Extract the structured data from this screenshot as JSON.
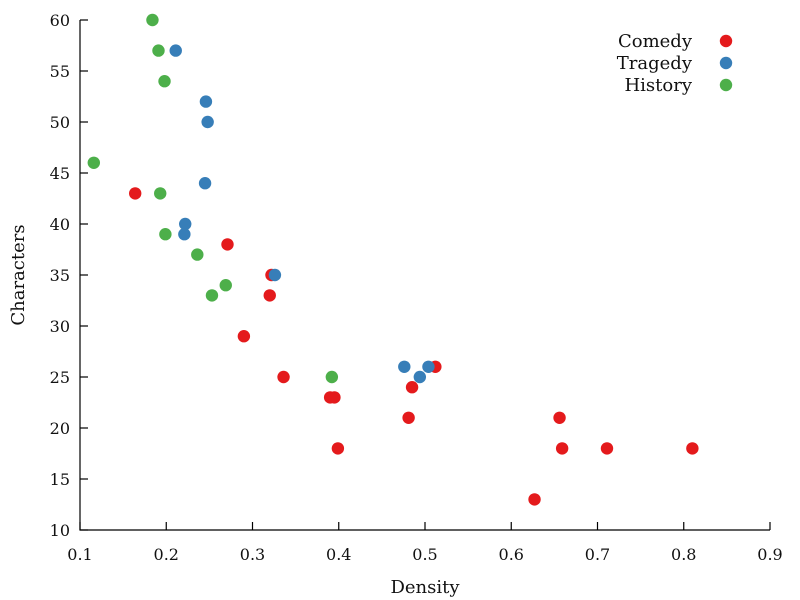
{
  "chart_data": {
    "type": "scatter",
    "title": "",
    "xlabel": "Density",
    "ylabel": "Characters",
    "xlim": [
      0.1,
      0.9
    ],
    "ylim": [
      10,
      60
    ],
    "xticks": [
      0.1,
      0.2,
      0.3,
      0.4,
      0.5,
      0.6,
      0.7,
      0.8,
      0.9
    ],
    "yticks": [
      10,
      15,
      20,
      25,
      30,
      35,
      40,
      45,
      50,
      55,
      60
    ],
    "xtick_labels": [
      "0.1",
      "0.2",
      "0.3",
      "0.4",
      "0.5",
      "0.6",
      "0.7",
      "0.8",
      "0.9"
    ],
    "ytick_labels": [
      "10",
      "15",
      "20",
      "25",
      "30",
      "35",
      "40",
      "45",
      "50",
      "55",
      "60"
    ],
    "grid": false,
    "legend_position": "top-right",
    "series": [
      {
        "name": "Comedy",
        "color": "#e41a1c",
        "points": [
          {
            "x": 0.164,
            "y": 43
          },
          {
            "x": 0.271,
            "y": 38
          },
          {
            "x": 0.322,
            "y": 35
          },
          {
            "x": 0.32,
            "y": 33
          },
          {
            "x": 0.29,
            "y": 29
          },
          {
            "x": 0.336,
            "y": 25
          },
          {
            "x": 0.39,
            "y": 23
          },
          {
            "x": 0.395,
            "y": 23
          },
          {
            "x": 0.399,
            "y": 18
          },
          {
            "x": 0.485,
            "y": 24
          },
          {
            "x": 0.481,
            "y": 21
          },
          {
            "x": 0.512,
            "y": 26
          },
          {
            "x": 0.656,
            "y": 21
          },
          {
            "x": 0.659,
            "y": 18
          },
          {
            "x": 0.711,
            "y": 18
          },
          {
            "x": 0.81,
            "y": 18
          },
          {
            "x": 0.627,
            "y": 13
          }
        ]
      },
      {
        "name": "Tragedy",
        "color": "#377eb8",
        "points": [
          {
            "x": 0.211,
            "y": 57
          },
          {
            "x": 0.246,
            "y": 52
          },
          {
            "x": 0.248,
            "y": 50
          },
          {
            "x": 0.245,
            "y": 44
          },
          {
            "x": 0.222,
            "y": 40
          },
          {
            "x": 0.221,
            "y": 39
          },
          {
            "x": 0.326,
            "y": 35
          },
          {
            "x": 0.476,
            "y": 26
          },
          {
            "x": 0.504,
            "y": 26
          },
          {
            "x": 0.494,
            "y": 25
          }
        ]
      },
      {
        "name": "History",
        "color": "#4daf4a",
        "points": [
          {
            "x": 0.184,
            "y": 60
          },
          {
            "x": 0.191,
            "y": 57
          },
          {
            "x": 0.198,
            "y": 54
          },
          {
            "x": 0.116,
            "y": 46
          },
          {
            "x": 0.193,
            "y": 43
          },
          {
            "x": 0.199,
            "y": 39
          },
          {
            "x": 0.236,
            "y": 37
          },
          {
            "x": 0.269,
            "y": 34
          },
          {
            "x": 0.253,
            "y": 33
          },
          {
            "x": 0.392,
            "y": 25
          }
        ]
      }
    ]
  }
}
